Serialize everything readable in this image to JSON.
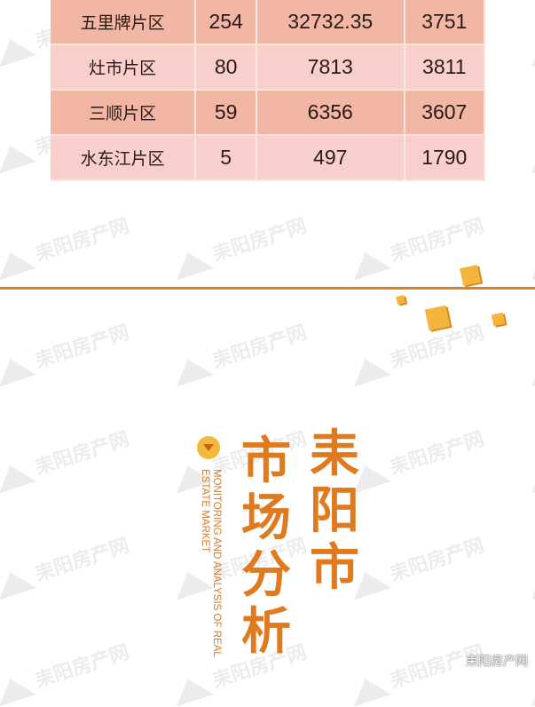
{
  "table": {
    "rows": [
      [
        "五里牌片区",
        "254",
        "32732.35",
        "3751"
      ],
      [
        "灶市片区",
        "80",
        "7813",
        "3811"
      ],
      [
        "三顺片区",
        "59",
        "6356",
        "3607"
      ],
      [
        "水东江片区",
        "5",
        "497",
        "1790"
      ]
    ]
  },
  "section": {
    "title_col1": "耒阳市",
    "title_col2": "市场分析",
    "subtitle": "MONITORING AND ANALYSIS OF REAL ESTATE MARKET"
  },
  "watermark": {
    "text": "耒阳房产网"
  },
  "colors": {
    "accent": "#e07a1f",
    "row_dark": "#f2b7a4",
    "row_light": "#f8cfca",
    "cube": "#f5b43c"
  }
}
